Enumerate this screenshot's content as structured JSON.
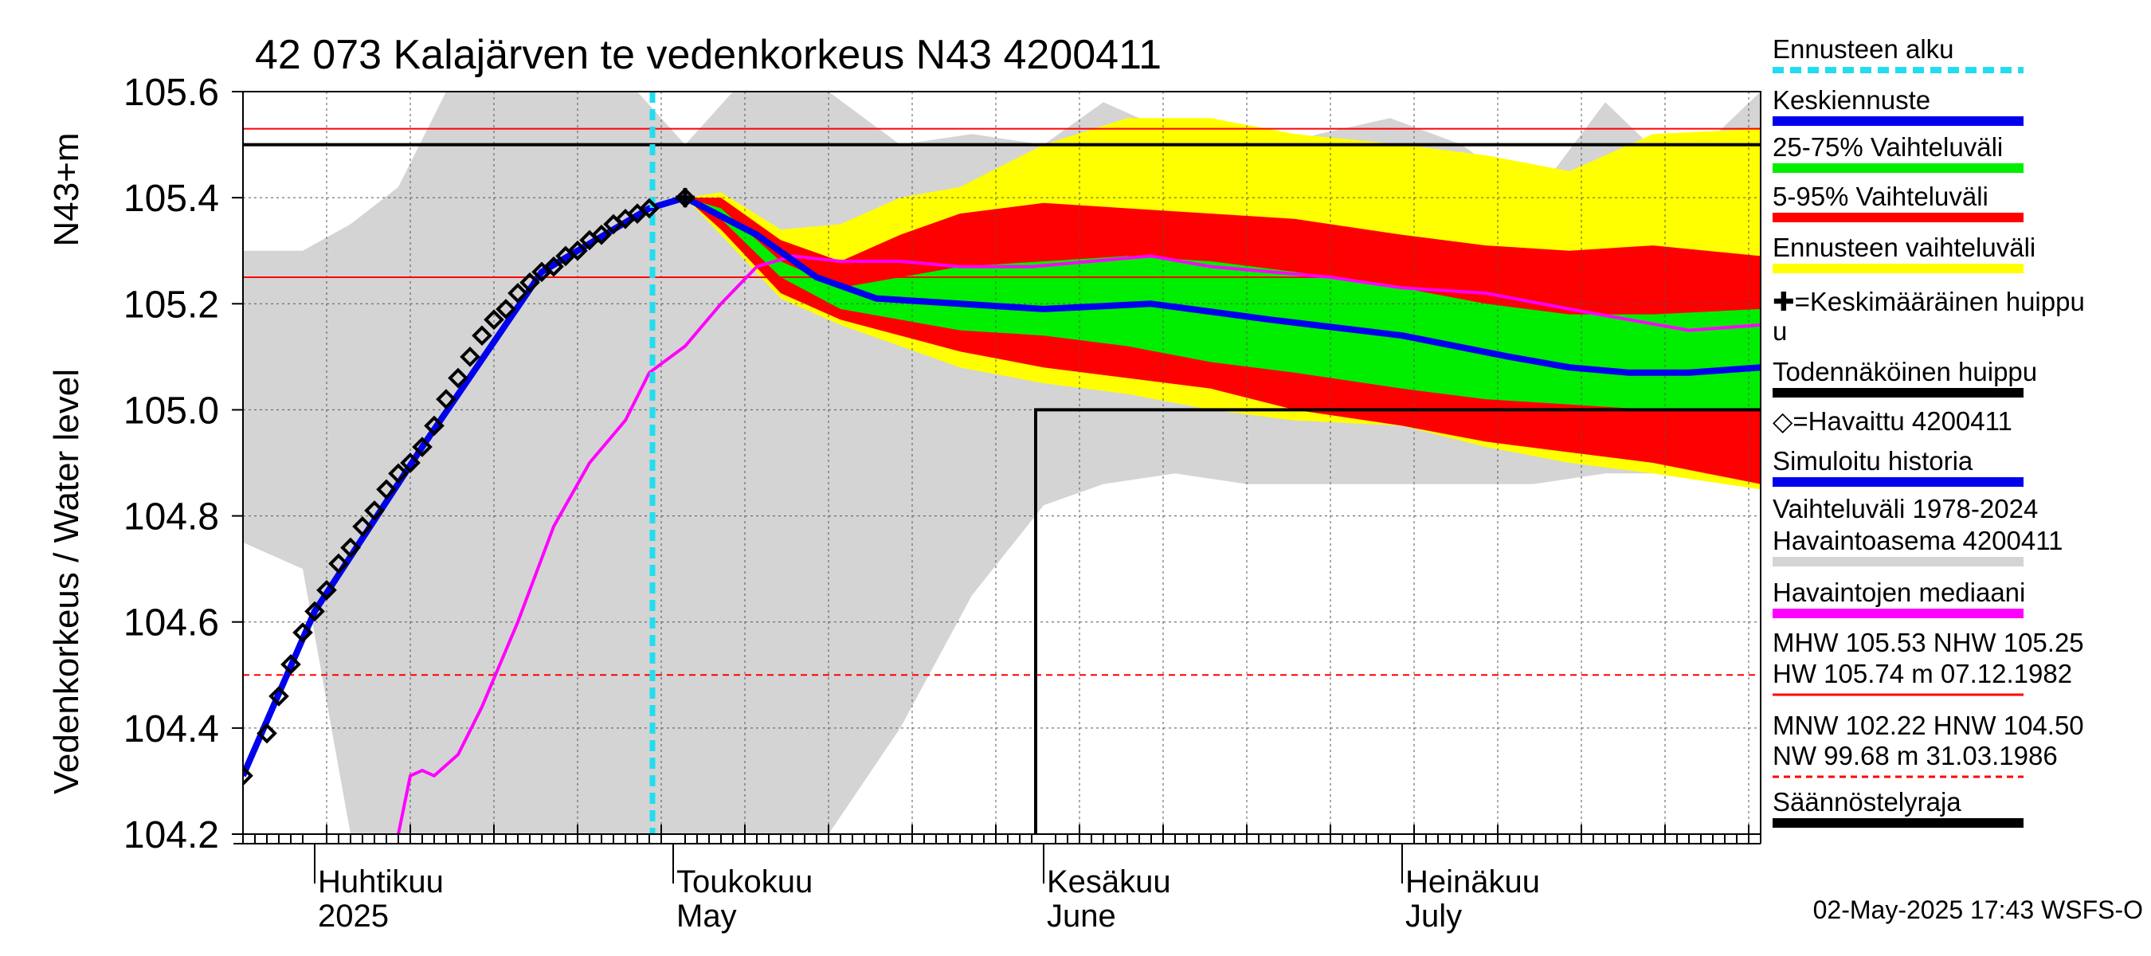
{
  "chart_data": {
    "type": "line",
    "title": "42 073 Kalajärven te vedenkorkeus N43 4200411",
    "ylabel": "Vedenkorkeus / Water level",
    "yunit": "N43+m",
    "ylim": [
      104.2,
      105.6
    ],
    "yticks": [
      "104.2",
      "104.4",
      "104.6",
      "104.8",
      "105.0",
      "105.2",
      "105.4",
      "105.6"
    ],
    "xlim": [
      "2025-03-26",
      "2025-07-31"
    ],
    "month_labels": [
      {
        "date": "2025-04-01",
        "fi": "Huhtikuu",
        "en": "2025"
      },
      {
        "date": "2025-05-01",
        "fi": "Toukokuu",
        "en": "May"
      },
      {
        "date": "2025-06-01",
        "fi": "Kesäkuu",
        "en": "June"
      },
      {
        "date": "2025-07-01",
        "fi": "Heinäkuu",
        "en": "July"
      }
    ],
    "grid": true,
    "legend_position": "right",
    "forecast_start": "2025-04-29",
    "reference_lines": {
      "MHW": 105.53,
      "NHW": 105.25,
      "HNW": 104.5,
      "probable_peak": 105.5,
      "regulation_limit": 105.0,
      "regulation_limit_start": "2025-06-braces"
    },
    "peak_marker": {
      "date": "2025-05-02",
      "value": 105.4
    },
    "observed": {
      "name": "=Havaittu 4200411",
      "x": [
        "2025-03-26",
        "2025-03-28",
        "2025-03-29",
        "2025-03-30",
        "2025-03-31",
        "2025-04-01",
        "2025-04-02",
        "2025-04-03",
        "2025-04-04",
        "2025-04-05",
        "2025-04-06",
        "2025-04-07",
        "2025-04-08",
        "2025-04-09",
        "2025-04-10",
        "2025-04-11",
        "2025-04-12",
        "2025-04-13",
        "2025-04-14",
        "2025-04-15",
        "2025-04-16",
        "2025-04-17",
        "2025-04-18",
        "2025-04-19",
        "2025-04-20",
        "2025-04-21",
        "2025-04-22",
        "2025-04-23",
        "2025-04-24",
        "2025-04-25",
        "2025-04-26",
        "2025-04-27",
        "2025-04-28",
        "2025-04-29",
        "2025-05-02"
      ],
      "y": [
        104.31,
        104.39,
        104.46,
        104.52,
        104.58,
        104.62,
        104.66,
        104.71,
        104.74,
        104.78,
        104.81,
        104.85,
        104.88,
        104.9,
        104.93,
        104.97,
        105.02,
        105.06,
        105.1,
        105.14,
        105.17,
        105.19,
        105.22,
        105.24,
        105.26,
        105.27,
        105.29,
        105.3,
        105.32,
        105.33,
        105.35,
        105.36,
        105.37,
        105.38,
        105.4
      ]
    },
    "series": [
      {
        "name": "Keskiennuste",
        "x": [
          "2025-03-26",
          "2025-04-01",
          "2025-04-10",
          "2025-04-20",
          "2025-04-29",
          "2025-05-02",
          "2025-05-08",
          "2025-05-13",
          "2025-05-18",
          "2025-05-25",
          "2025-06-01",
          "2025-06-10",
          "2025-06-20",
          "2025-07-01",
          "2025-07-10",
          "2025-07-15",
          "2025-07-20",
          "2025-07-25",
          "2025-07-31"
        ],
        "y": [
          104.31,
          104.62,
          104.93,
          105.26,
          105.38,
          105.4,
          105.33,
          105.25,
          105.21,
          105.2,
          105.19,
          105.2,
          105.17,
          105.14,
          105.1,
          105.08,
          105.07,
          105.07,
          105.08
        ]
      },
      {
        "name": "Havaintojen mediaani",
        "x": [
          "2025-04-08",
          "2025-04-09",
          "2025-04-10",
          "2025-04-11",
          "2025-04-13",
          "2025-04-15",
          "2025-04-18",
          "2025-04-21",
          "2025-04-24",
          "2025-04-27",
          "2025-04-29",
          "2025-05-02",
          "2025-05-05",
          "2025-05-08",
          "2025-05-11",
          "2025-05-15",
          "2025-05-20",
          "2025-05-25",
          "2025-05-31",
          "2025-06-05",
          "2025-06-10",
          "2025-06-15",
          "2025-06-20",
          "2025-06-25",
          "2025-07-01",
          "2025-07-08",
          "2025-07-15",
          "2025-07-20",
          "2025-07-25",
          "2025-07-31"
        ],
        "y": [
          104.2,
          104.31,
          104.32,
          104.31,
          104.35,
          104.44,
          104.6,
          104.78,
          104.9,
          104.98,
          105.07,
          105.12,
          105.2,
          105.27,
          105.29,
          105.28,
          105.28,
          105.27,
          105.27,
          105.28,
          105.29,
          105.27,
          105.26,
          105.25,
          105.23,
          105.22,
          105.19,
          105.17,
          105.15,
          105.16
        ]
      }
    ],
    "bands": [
      {
        "name": "Vaihteluväli 1978-2024 Havaintoasema 4200411",
        "color": "#d4d4d4",
        "x": [
          "2025-03-26",
          "2025-03-31",
          "2025-04-04",
          "2025-04-08",
          "2025-04-12",
          "2025-04-16",
          "2025-04-20",
          "2025-04-24",
          "2025-04-28",
          "2025-05-02",
          "2025-05-06",
          "2025-05-10",
          "2025-05-14",
          "2025-05-20",
          "2025-05-26",
          "2025-06-01",
          "2025-06-06",
          "2025-06-12",
          "2025-06-18",
          "2025-06-24",
          "2025-06-30",
          "2025-07-06",
          "2025-07-12",
          "2025-07-18",
          "2025-07-24",
          "2025-07-31"
        ],
        "low": [
          104.75,
          104.7,
          104.2,
          104.2,
          104.2,
          104.2,
          104.2,
          104.2,
          104.2,
          104.2,
          104.2,
          104.2,
          104.2,
          104.4,
          104.65,
          104.82,
          104.86,
          104.88,
          104.86,
          104.86,
          104.86,
          104.86,
          104.86,
          104.88,
          104.88,
          104.87
        ],
        "high": [
          105.3,
          105.3,
          105.35,
          105.42,
          105.6,
          105.6,
          105.6,
          105.6,
          105.6,
          105.5,
          105.6,
          105.6,
          105.6,
          105.5,
          105.52,
          105.5,
          105.58,
          105.52,
          105.48,
          105.52,
          105.55,
          105.5,
          105.4,
          105.58,
          105.45,
          105.6
        ]
      },
      {
        "name": "Ennusteen vaihteluväli",
        "color": "#ffff00",
        "x": [
          "2025-05-02",
          "2025-05-05",
          "2025-05-10",
          "2025-05-15",
          "2025-05-20",
          "2025-05-25",
          "2025-06-01",
          "2025-06-08",
          "2025-06-15",
          "2025-06-22",
          "2025-07-01",
          "2025-07-08",
          "2025-07-15",
          "2025-07-22",
          "2025-07-31"
        ],
        "low": [
          105.4,
          105.33,
          105.21,
          105.16,
          105.12,
          105.08,
          105.05,
          105.03,
          105.0,
          104.98,
          104.97,
          104.93,
          104.9,
          104.88,
          104.85
        ],
        "high": [
          105.4,
          105.41,
          105.34,
          105.35,
          105.4,
          105.42,
          105.5,
          105.55,
          105.55,
          105.52,
          105.5,
          105.48,
          105.45,
          105.52,
          105.53
        ]
      },
      {
        "name": "5-95% Vaihteluväli",
        "color": "#ff0000",
        "x": [
          "2025-05-02",
          "2025-05-05",
          "2025-05-10",
          "2025-05-15",
          "2025-05-20",
          "2025-05-25",
          "2025-06-01",
          "2025-06-08",
          "2025-06-15",
          "2025-06-22",
          "2025-07-01",
          "2025-07-08",
          "2025-07-15",
          "2025-07-22",
          "2025-07-31"
        ],
        "low": [
          105.4,
          105.34,
          105.22,
          105.17,
          105.14,
          105.11,
          105.08,
          105.06,
          105.04,
          105.0,
          104.97,
          104.94,
          104.92,
          104.9,
          104.86
        ],
        "high": [
          105.4,
          105.4,
          105.32,
          105.28,
          105.33,
          105.37,
          105.39,
          105.38,
          105.37,
          105.36,
          105.33,
          105.31,
          105.3,
          105.31,
          105.29
        ]
      },
      {
        "name": "25-75% Vaihteluväli",
        "color": "#00ee00",
        "x": [
          "2025-05-02",
          "2025-05-05",
          "2025-05-10",
          "2025-05-15",
          "2025-05-20",
          "2025-05-25",
          "2025-06-01",
          "2025-06-08",
          "2025-06-15",
          "2025-06-22",
          "2025-07-01",
          "2025-07-08",
          "2025-07-15",
          "2025-07-22",
          "2025-07-31"
        ],
        "low": [
          105.4,
          105.36,
          105.25,
          105.19,
          105.17,
          105.15,
          105.14,
          105.12,
          105.09,
          105.07,
          105.04,
          105.02,
          105.01,
          105.0,
          105.0
        ],
        "high": [
          105.4,
          105.38,
          105.28,
          105.23,
          105.25,
          105.27,
          105.28,
          105.29,
          105.28,
          105.26,
          105.23,
          105.2,
          105.18,
          105.18,
          105.19
        ]
      }
    ]
  },
  "legend": [
    {
      "label": "Ennusteen alku",
      "kind": "dashed",
      "color": "#22ddee"
    },
    {
      "label": "Keskiennuste",
      "kind": "line",
      "color": "#0000ee"
    },
    {
      "label": "25-75% Vaihteluväli",
      "kind": "line",
      "color": "#00ee00"
    },
    {
      "label": "5-95% Vaihteluväli",
      "kind": "line",
      "color": "#ff0000"
    },
    {
      "label": "Ennusteen vaihteluväli",
      "kind": "line",
      "color": "#ffff00"
    },
    {
      "label": "✚=Keskimääräinen huippu",
      "kind": "text"
    },
    {
      "label": "u",
      "kind": "text"
    },
    {
      "label": "Todennäköinen huippu",
      "kind": "line",
      "color": "#000000"
    },
    {
      "label": "◇=Havaittu 4200411",
      "kind": "text"
    },
    {
      "label": "Simuloitu historia",
      "kind": "line",
      "color": "#0000ee"
    },
    {
      "label": "Vaihteluväli 1978-2024",
      "kind": "text"
    },
    {
      "label": " Havaintoasema 4200411",
      "kind": "line",
      "color": "#d4d4d4"
    },
    {
      "label": "Havaintojen mediaani",
      "kind": "line",
      "color": "#ff00ff"
    },
    {
      "label": "MHW 105.53 NHW 105.25",
      "kind": "text"
    },
    {
      "label": "HW 105.74 m 07.12.1982",
      "kind": "thin",
      "color": "#ff0000"
    },
    {
      "label": "MNW 102.22 HNW 104.50",
      "kind": "text"
    },
    {
      "label": "NW  99.68 m 31.03.1986",
      "kind": "dotted",
      "color": "#ff0000"
    },
    {
      "label": "Säännöstelyraja",
      "kind": "line",
      "color": "#000000"
    }
  ],
  "footer": "02-May-2025 17:43 WSFS-O",
  "colors": {
    "history": "#d4d4d4",
    "forecast_range": "#ffff00",
    "range_5_95": "#ff0000",
    "range_25_75": "#00ee00",
    "mean_forecast": "#0000ee",
    "median": "#ff00ff",
    "forecast_start": "#22ddee",
    "reference_red": "#ff0000"
  }
}
